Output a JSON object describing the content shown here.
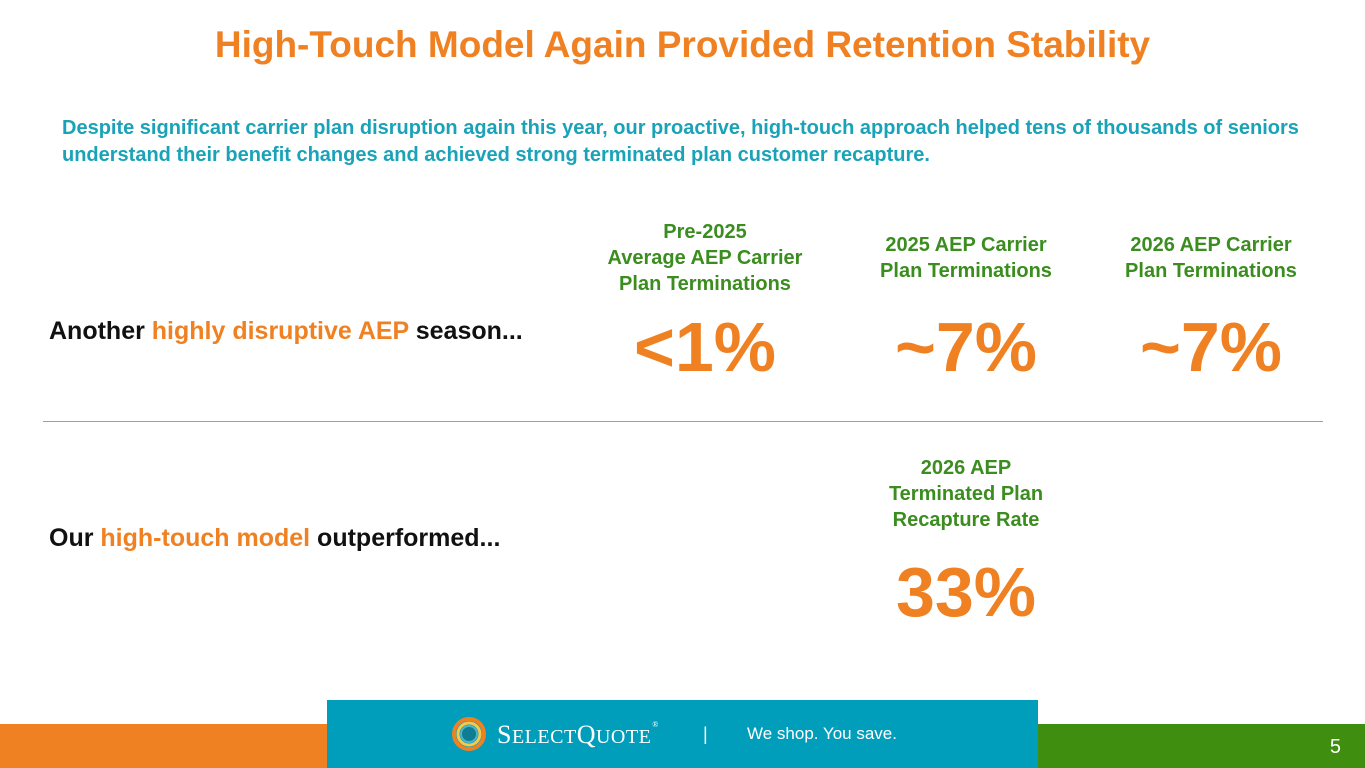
{
  "slide": {
    "title": "High-Touch Model Again Provided Retention Stability",
    "subtitle": "Despite significant carrier plan disruption again this year, our proactive, high-touch approach helped tens of thousands of seniors understand their benefit changes and achieved strong terminated plan customer recapture.",
    "row1": {
      "label_prefix": "Another ",
      "label_highlight": "highly disruptive AEP",
      "label_suffix": " season...",
      "columns": [
        {
          "header": "Pre-2025\nAverage AEP Carrier\nPlan Terminations",
          "value": "<1%"
        },
        {
          "header": "2025 AEP Carrier\nPlan Terminations",
          "value": "~7%"
        },
        {
          "header": "2026 AEP Carrier\nPlan Terminations",
          "value": "~7%"
        }
      ]
    },
    "row2": {
      "label_prefix": "Our ",
      "label_highlight": "high-touch model",
      "label_suffix": " outperformed...",
      "column": {
        "header": "2026 AEP\nTerminated Plan\nRecapture Rate",
        "value": "33%"
      }
    }
  },
  "footer": {
    "brand_first": "S",
    "brand_rest1": "ELECT",
    "brand_mid": "Q",
    "brand_rest2": "UOTE",
    "brand_tm": "®",
    "separator": "|",
    "tagline": "We shop. You save.",
    "page_number": "5"
  },
  "colors": {
    "accent_orange": "#F08123",
    "teal": "#1AA3B8",
    "green": "#3A8D1E"
  }
}
